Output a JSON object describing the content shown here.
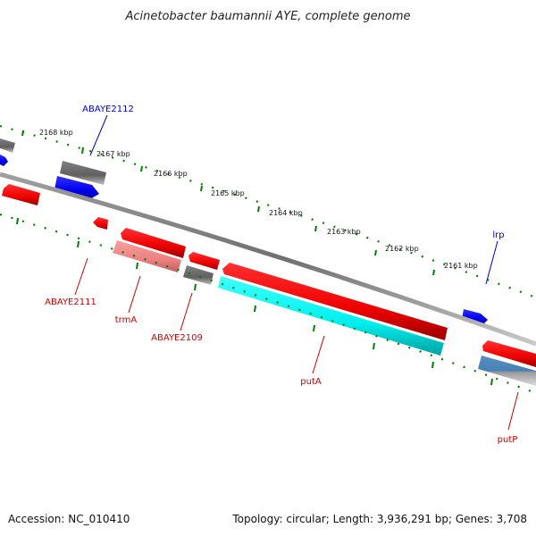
{
  "title": "Acinetobacter baumannii AYE, complete genome",
  "footer": {
    "accession": "Accession: NC_010410",
    "topology": "Topology: circular; Length: 3,936,291 bp; Genes: 3,708"
  },
  "tick_labels": [
    "2168 kbp",
    "2167 kbp",
    "2166 kbp",
    "2165 kbp",
    "2164 kbp",
    "2163 kbp",
    "2162 kbp",
    "2161 kbp"
  ],
  "gene_labels": {
    "ABAYE2112": "ABAYE2112",
    "lrp": "lrp",
    "ABAYE2111": "ABAYE2111",
    "trmA": "trmA",
    "ABAYE2109": "ABAYE2109",
    "putA": "putA",
    "putP": "putP"
  },
  "colors": {
    "forward_cds": "#0000ff",
    "reverse_cds": "#ff0000",
    "reverse_cds_light": "#f08080",
    "other": "#606060",
    "putA_band": "#00ffff",
    "putP_band": "#4682b4",
    "backbone": "#808080",
    "ticks": "#008000"
  }
}
